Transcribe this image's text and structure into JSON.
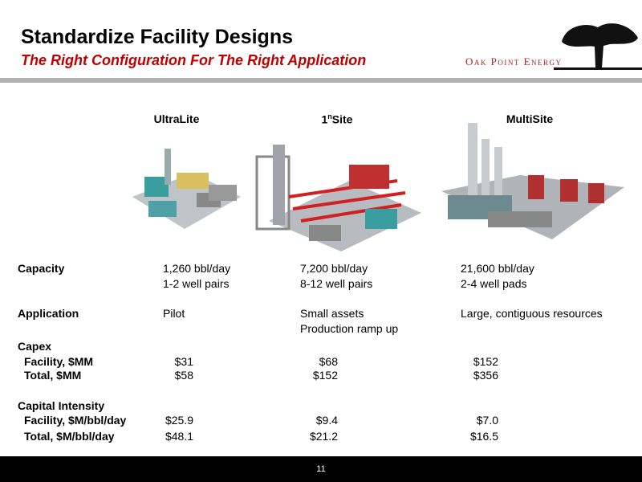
{
  "header": {
    "title": "Standardize Facility Designs",
    "subtitle": "The Right Configuration For The Right Application",
    "logo": "Oak Point Energy"
  },
  "columns": [
    {
      "text": "UltraLite"
    },
    {
      "text": "1",
      "sup": "n",
      "rest": "Site"
    },
    {
      "text": "MultiSite"
    }
  ],
  "rows": [
    {
      "label": "Capacity",
      "cells": [
        [
          "1,260 bbl/day",
          "1-2 well pairs"
        ],
        [
          "7,200 bbl/day",
          "8-12 well pairs"
        ],
        [
          "21,600 bbl/day",
          "2-4 well pads"
        ]
      ]
    },
    {
      "label": "Application",
      "cells": [
        [
          "Pilot"
        ],
        [
          "Small assets",
          "Production ramp up"
        ],
        [
          "Large, contiguous resources"
        ]
      ]
    },
    {
      "label": "Capex"
    },
    {
      "label": "Facility, $MM",
      "cells": [
        [
          "$31"
        ],
        [
          "$68"
        ],
        [
          "$152"
        ]
      ]
    },
    {
      "label": "Total, $MM",
      "cells": [
        [
          "$58"
        ],
        [
          "$152"
        ],
        [
          "$356"
        ]
      ]
    },
    {
      "label": "Capital Intensity"
    },
    {
      "label": "Facility, $M/bbl/day",
      "cells": [
        [
          "$25.9"
        ],
        [
          "$9.4"
        ],
        [
          "$7.0"
        ]
      ]
    },
    {
      "label": "Total, $M/bbl/day",
      "cells": [
        [
          "$48.1"
        ],
        [
          "$21.2"
        ],
        [
          "$16.5"
        ]
      ]
    }
  ],
  "footer": {
    "page": "11"
  }
}
